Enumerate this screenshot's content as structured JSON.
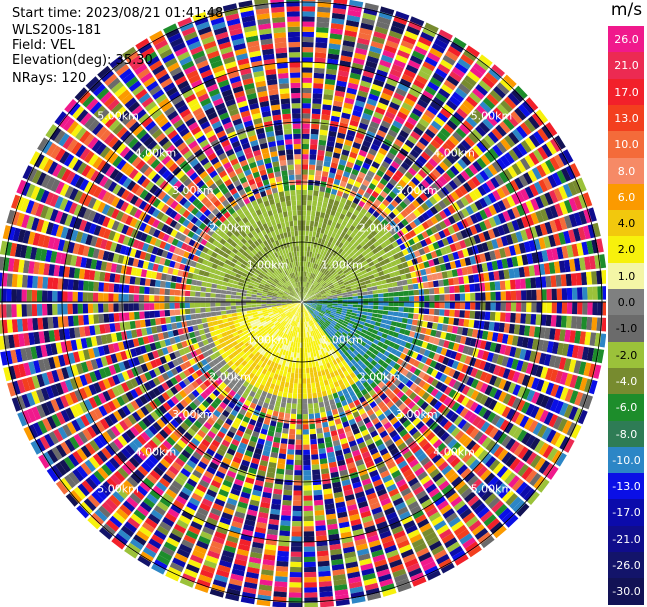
{
  "info": {
    "start_time": "Start time: 2023/08/21 01:41:48",
    "site": "WLS200s-181",
    "field": "Field: VEL",
    "elevation": "Elevation(deg): 35.30",
    "nrays": "NRays: 120"
  },
  "range_labels": [
    "1.00km",
    "2.00km",
    "3.00km",
    "4.00km",
    "5.00km"
  ],
  "colorbar": {
    "unit": "m/s",
    "ticks": [
      "26.0",
      "21.0",
      "17.0",
      "13.0",
      "10.0",
      "8.0",
      "6.0",
      "4.0",
      "2.0",
      "1.0",
      "0.0",
      "-1.0",
      "-2.0",
      "-4.0",
      "-6.0",
      "-8.0",
      "-10.0",
      "-13.0",
      "-17.0",
      "-21.0",
      "-26.0",
      "-30.0"
    ],
    "colors": [
      "#f0198c",
      "#ec2a52",
      "#f2202a",
      "#f33f1e",
      "#f46b3a",
      "#f68a66",
      "#fb9a00",
      "#f2c80d",
      "#f7f10c",
      "#f4f6a6",
      "#7f8080",
      "#6b6b6b",
      "#9bc23a",
      "#778b2f",
      "#1d8d2b",
      "#2e7c55",
      "#2c86c6",
      "#0a0fe6",
      "#0b0bab",
      "#100d8c",
      "#13146a",
      "#121255"
    ]
  }
}
